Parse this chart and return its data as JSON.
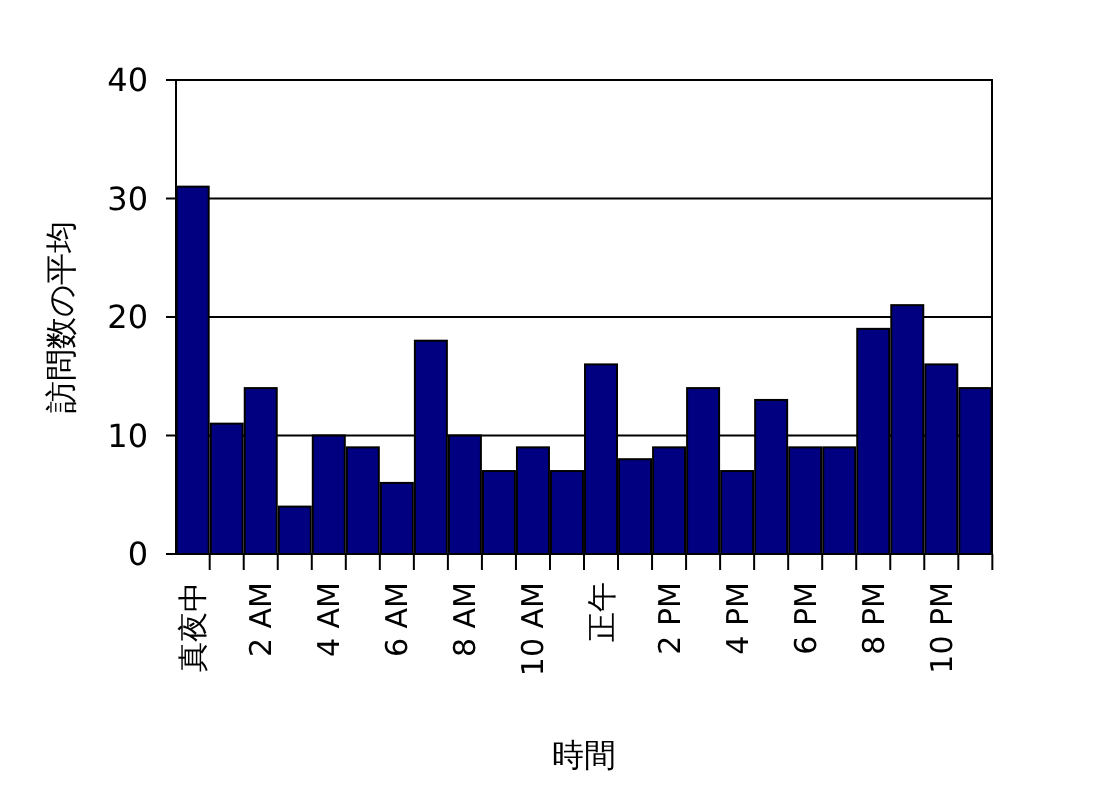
{
  "chart_data": {
    "type": "bar",
    "xlabel": "時間",
    "ylabel": "訪問数の平均",
    "categories": [
      "真夜中",
      null,
      "2 AM",
      null,
      "4 AM",
      null,
      "6 AM",
      null,
      "8 AM",
      null,
      "10 AM",
      null,
      "正午",
      null,
      "2 PM",
      null,
      "4 PM",
      null,
      "6 PM",
      null,
      "8 PM",
      null,
      "10 PM",
      null
    ],
    "values": [
      31,
      11,
      14,
      4,
      10,
      9,
      6,
      18,
      10,
      7,
      9,
      7,
      16,
      8,
      9,
      14,
      7,
      13,
      9,
      9,
      19,
      21,
      16,
      14
    ],
    "color": "#000080",
    "ylim": [
      0,
      40
    ],
    "yticks": [
      0,
      10,
      20,
      30,
      40
    ],
    "grid": "y"
  }
}
